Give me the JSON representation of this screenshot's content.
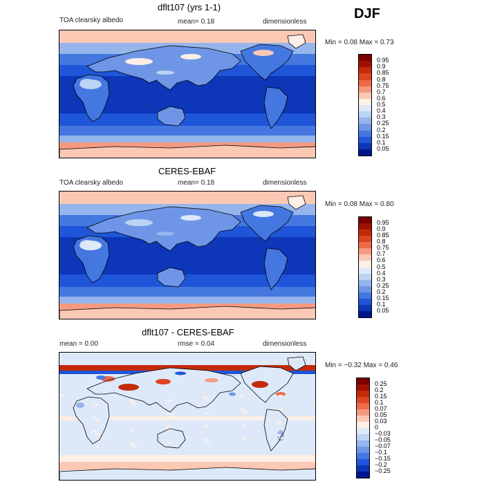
{
  "season": "DJF",
  "panels": [
    {
      "title": "dflt107 (yrs 1-1)",
      "left_label": "TOA clearsky albedo",
      "mid_label": "mean=   0.18",
      "right_label": "dimensionless",
      "minmax": "Min =    0.08  Max =    0.73",
      "levels": [
        "0.95",
        "0.9",
        "0.85",
        "0.8",
        "0.75",
        "0.7",
        "0.6",
        "0.5",
        "0.4",
        "0.3",
        "0.25",
        "0.2",
        "0.15",
        "0.1",
        "0.05"
      ],
      "colors": [
        "#7a0000",
        "#a01000",
        "#c42a08",
        "#dd4422",
        "#ee6a48",
        "#f59a80",
        "#fbc8b4",
        "#fdeee6",
        "#dde9f9",
        "#bdd3f3",
        "#95b5ec",
        "#6f96e6",
        "#4478e0",
        "#1f55d8",
        "#0d36b8",
        "#02168c"
      ],
      "map_style": "abs"
    },
    {
      "title": "CERES-EBAF",
      "left_label": "TOA clearsky albedo",
      "mid_label": "mean=   0.18",
      "right_label": "dimensionless",
      "minmax": "Min =    0.08  Max =    0.80",
      "levels": [
        "0.95",
        "0.9",
        "0.85",
        "0.8",
        "0.75",
        "0.7",
        "0.6",
        "0.5",
        "0.4",
        "0.3",
        "0.25",
        "0.2",
        "0.15",
        "0.1",
        "0.05"
      ],
      "colors": [
        "#7a0000",
        "#a01000",
        "#c42a08",
        "#dd4422",
        "#ee6a48",
        "#f59a80",
        "#fbc8b4",
        "#fdeee6",
        "#dde9f9",
        "#bdd3f3",
        "#95b5ec",
        "#6f96e6",
        "#4478e0",
        "#1f55d8",
        "#0d36b8",
        "#02168c"
      ],
      "map_style": "abs"
    },
    {
      "title": "dflt107 - CERES-EBAF",
      "left_label": "mean =     0.00",
      "mid_label": "rmse =   0.04",
      "right_label": "dimensionless",
      "minmax": "Min =  −0.32  Max =    0.46",
      "levels": [
        "0.25",
        "0.2",
        "0.15",
        "0.1",
        "0.07",
        "0.05",
        "0.03",
        "0",
        "−0.03",
        "−0.05",
        "−0.07",
        "−0.1",
        "−0.15",
        "−0.2",
        "−0.25"
      ],
      "colors": [
        "#7a0000",
        "#a01000",
        "#c42a08",
        "#dd4422",
        "#ee6a48",
        "#f59a80",
        "#fbc8b4",
        "#fdeee6",
        "#dde9f9",
        "#bdd3f3",
        "#95b5ec",
        "#6f96e6",
        "#4478e0",
        "#1f55d8",
        "#0d36b8",
        "#02168c"
      ],
      "map_style": "diff"
    }
  ]
}
